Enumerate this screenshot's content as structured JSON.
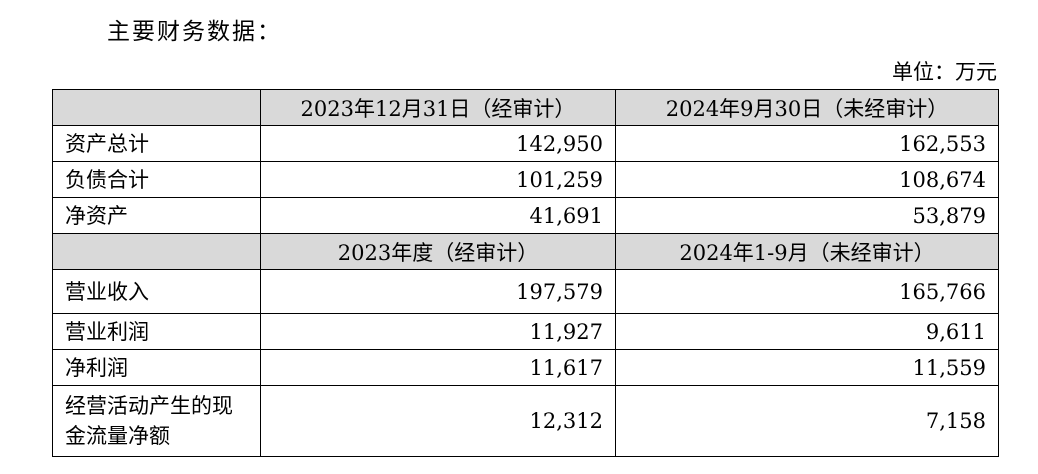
{
  "title": "主要财务数据：",
  "unit": "单位：万元",
  "table": {
    "sections": [
      {
        "columns": [
          "2023年12月31日（经审计）",
          "2024年9月30日（未经审计）"
        ],
        "rows": [
          [
            "资产总计",
            "142,950",
            "162,553"
          ],
          [
            "负债合计",
            "101,259",
            "108,674"
          ],
          [
            "净资产",
            "41,691",
            "53,879"
          ]
        ]
      },
      {
        "columns": [
          "2023年度（经审计）",
          "2024年1-9月（未经审计）"
        ],
        "rows": [
          [
            "营业收入",
            "197,579",
            "165,766"
          ],
          [
            "营业利润",
            "11,927",
            "9,611"
          ],
          [
            "净利润",
            "11,617",
            "11,559"
          ],
          [
            "经营活动产生的现金流量净额",
            "12,312",
            "7,158"
          ]
        ]
      }
    ]
  }
}
